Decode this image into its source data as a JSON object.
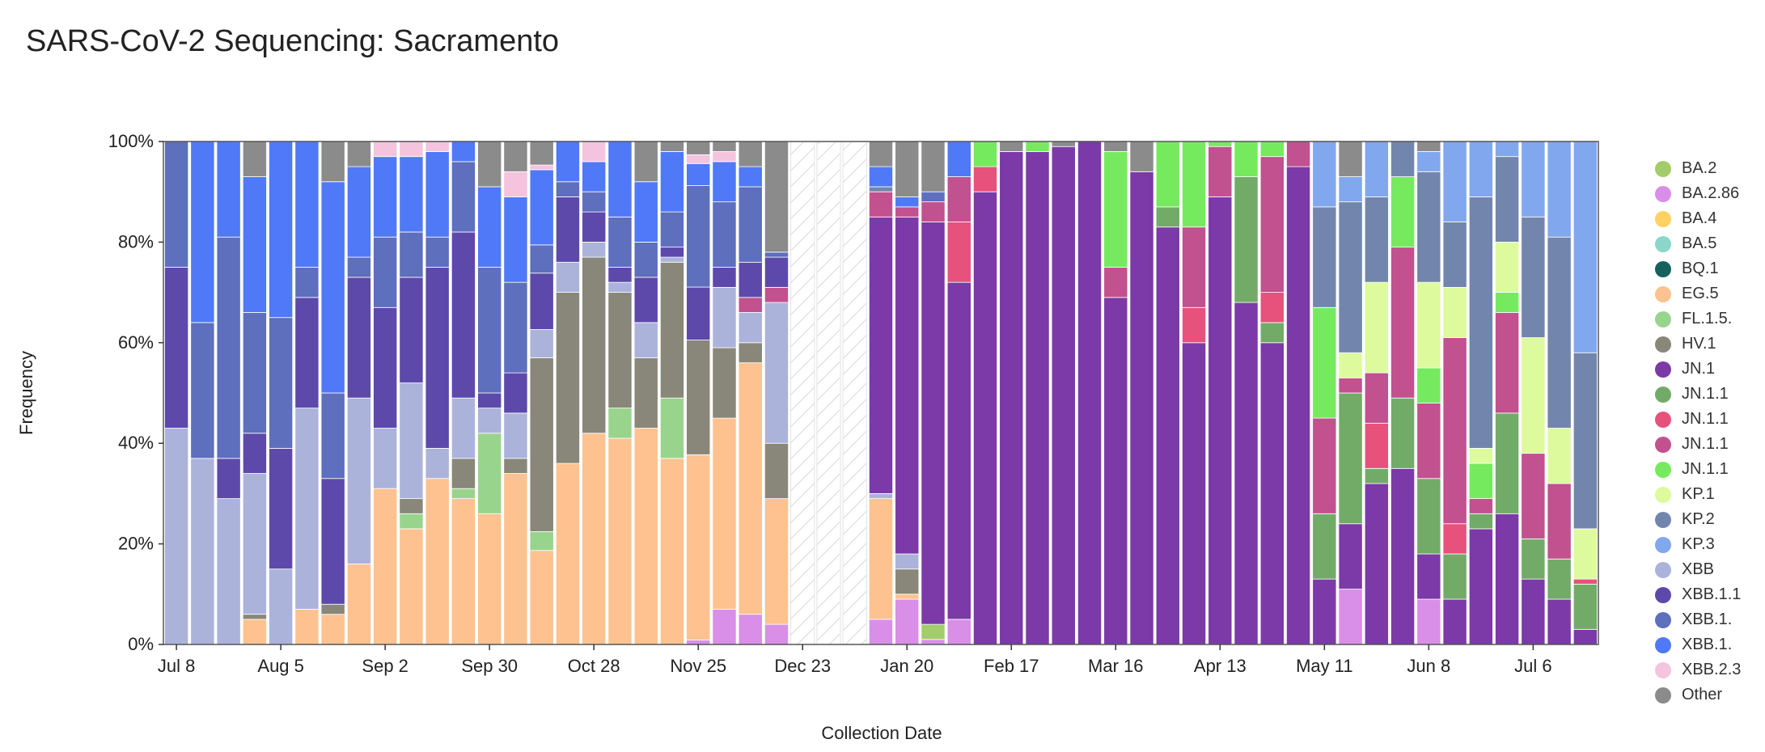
{
  "title": "SARS-CoV-2 Sequencing: Sacramento",
  "chart_data": {
    "type": "bar",
    "stacked": true,
    "normalized": true,
    "xlabel": "Collection Date",
    "ylabel": "Frequency",
    "yticks": [
      "0%",
      "20%",
      "40%",
      "60%",
      "80%",
      "100%"
    ],
    "ylim": [
      0,
      100
    ],
    "xtick_labels": [
      "Jul 8",
      "Aug 5",
      "Sep 2",
      "Sep 30",
      "Oct 28",
      "Nov 25",
      "Dec 23",
      "Jan 20",
      "Feb 17",
      "Mar 16",
      "Apr 13",
      "May 11",
      "Jun 8",
      "Jul 6"
    ],
    "xtick_positions": [
      0,
      4,
      8,
      12,
      16,
      20,
      24,
      28,
      32,
      36,
      40,
      44,
      48,
      52
    ],
    "no_data_weeks": [
      24,
      25,
      26
    ],
    "legend_position": "right",
    "legend": [
      {
        "key": "BA2",
        "label": "BA.2",
        "color": "#a3cc6a"
      },
      {
        "key": "BA286",
        "label": "BA.2.86",
        "color": "#d98ee8"
      },
      {
        "key": "BA4",
        "label": "BA.4",
        "color": "#fdd263"
      },
      {
        "key": "BA5",
        "label": "BA.5",
        "color": "#8ad6c8"
      },
      {
        "key": "BQ1",
        "label": "BQ.1",
        "color": "#14625e"
      },
      {
        "key": "EG5",
        "label": "EG.5",
        "color": "#fdc28f"
      },
      {
        "key": "FL15",
        "label": "FL.1.5.",
        "color": "#99d48d"
      },
      {
        "key": "HV1",
        "label": "HV.1",
        "color": "#888779"
      },
      {
        "key": "JN1",
        "label": "JN.1",
        "color": "#7b3aa7"
      },
      {
        "key": "JN1a",
        "label": "JN.1.1",
        "color": "#72ab68"
      },
      {
        "key": "JN1b",
        "label": "JN.1.1",
        "color": "#e6527c"
      },
      {
        "key": "JN1c",
        "label": "JN.1.1",
        "color": "#c2518f"
      },
      {
        "key": "JN1d",
        "label": "JN.1.1",
        "color": "#76ea5e"
      },
      {
        "key": "KP1",
        "label": "KP.1",
        "color": "#ddfa9d"
      },
      {
        "key": "KP2",
        "label": "KP.2",
        "color": "#7286ad"
      },
      {
        "key": "KP3",
        "label": "KP.3",
        "color": "#81a7ef"
      },
      {
        "key": "XBB",
        "label": "XBB",
        "color": "#abb3db"
      },
      {
        "key": "XBB11",
        "label": "XBB.1.1",
        "color": "#5d49aa"
      },
      {
        "key": "XBB1b",
        "label": "XBB.1.",
        "color": "#5d6fbd"
      },
      {
        "key": "XBB1c",
        "label": "XBB.1.",
        "color": "#4f79f6"
      },
      {
        "key": "XBB23",
        "label": "XBB.2.3",
        "color": "#f4c3de"
      },
      {
        "key": "Other",
        "label": "Other",
        "color": "#8b8b8b"
      }
    ],
    "stack_order": [
      "BA286",
      "BA2",
      "EG5",
      "FL15",
      "HV1",
      "XBB",
      "JN1",
      "JN1a",
      "JN1b",
      "JN1c",
      "JN1d",
      "KP1",
      "KP2",
      "KP3",
      "XBB11",
      "XBB1b",
      "XBB1c",
      "XBB23",
      "Other"
    ],
    "weeks": [
      {
        "XBB": 43,
        "XBB11": 32,
        "XBB1b": 25
      },
      {
        "XBB": 37,
        "XBB1b": 27,
        "XBB1c": 36
      },
      {
        "XBB": 29,
        "XBB11": 8,
        "XBB1b": 44,
        "XBB1c": 19
      },
      {
        "EG5": 5,
        "HV1": 1,
        "XBB": 28,
        "XBB11": 8,
        "XBB1b": 24,
        "XBB1c": 27,
        "Other": 7
      },
      {
        "XBB": 15,
        "XBB11": 24,
        "XBB1b": 26,
        "XBB1c": 35
      },
      {
        "EG5": 7,
        "XBB": 40,
        "XBB11": 22,
        "XBB1b": 6,
        "XBB1c": 25
      },
      {
        "EG5": 6,
        "HV1": 2,
        "XBB11": 25,
        "XBB1b": 17,
        "XBB1c": 42,
        "Other": 8
      },
      {
        "EG5": 16,
        "XBB": 33,
        "XBB11": 24,
        "XBB1b": 4,
        "XBB1c": 18,
        "Other": 5
      },
      {
        "EG5": 31,
        "XBB": 12,
        "XBB11": 24,
        "XBB1b": 14,
        "XBB1c": 16,
        "XBB23": 3
      },
      {
        "EG5": 23,
        "FL15": 3,
        "HV1": 3,
        "XBB": 23,
        "XBB11": 21,
        "XBB1b": 9,
        "XBB1c": 15,
        "XBB23": 3
      },
      {
        "EG5": 33,
        "XBB": 6,
        "XBB11": 36,
        "XBB1b": 6,
        "XBB1c": 17,
        "XBB23": 2
      },
      {
        "EG5": 29,
        "FL15": 2,
        "HV1": 6,
        "XBB": 12,
        "XBB11": 33,
        "XBB1b": 14,
        "XBB1c": 4
      },
      {
        "EG5": 26,
        "FL15": 16,
        "XBB": 5,
        "XBB11": 3,
        "XBB1b": 25,
        "XBB1c": 16,
        "Other": 9
      },
      {
        "EG5": 34,
        "HV1": 3,
        "XBB": 9,
        "XBB11": 8,
        "XBB1b": 18,
        "XBB1c": 17,
        "XBB23": 5,
        "Other": 6
      },
      {
        "EG5": 20,
        "FL15": 4,
        "HV1": 37,
        "XBB": 6,
        "XBB11": 12,
        "XBB1b": 6,
        "XBB1c": 16,
        "XBB23": 1,
        "Other": 5
      },
      {
        "EG5": 36,
        "HV1": 34,
        "XBB": 6,
        "XBB11": 13,
        "XBB1b": 3,
        "XBB1c": 8
      },
      {
        "EG5": 42,
        "HV1": 35,
        "XBB": 3,
        "XBB11": 6,
        "XBB1b": 4,
        "XBB1c": 6,
        "XBB23": 4
      },
      {
        "EG5": 41,
        "FL15": 6,
        "HV1": 23,
        "XBB": 2,
        "XBB11": 3,
        "XBB1b": 10,
        "XBB1c": 15
      },
      {
        "EG5": 43,
        "HV1": 14,
        "XBB": 7,
        "XBB11": 9,
        "XBB1b": 7,
        "XBB1c": 12,
        "Other": 8
      },
      {
        "EG5": 37,
        "FL15": 12,
        "HV1": 27,
        "XBB": 1,
        "XBB11": 2,
        "XBB1b": 7,
        "XBB1c": 12,
        "Other": 2
      },
      {
        "BA286": 1,
        "EG5": 42,
        "HV1": 26,
        "XBB11": 12,
        "XBB1b": 23,
        "XBB1c": 5,
        "XBB23": 2,
        "Other": 3
      },
      {
        "BA286": 7,
        "EG5": 38,
        "HV1": 14,
        "XBB11": 4,
        "XBB": 12,
        "XBB1b": 13,
        "XBB1c": 8,
        "XBB23": 2,
        "Other": 2
      },
      {
        "BA286": 6,
        "EG5": 50,
        "HV1": 4,
        "XBB11": 7,
        "JN1c": 3,
        "XBB": 6,
        "XBB1b": 15,
        "XBB1c": 4,
        "Other": 5
      },
      {
        "BA286": 4,
        "EG5": 25,
        "HV1": 11,
        "XBB11": 6,
        "JN1c": 3,
        "XBB": 28,
        "XBB1b": 1,
        "XBB1b2": 0,
        "XBB1c": 0,
        "Other": 22
      },
      null,
      null,
      null,
      {
        "BA286": 5,
        "EG5": 24,
        "JN1": 55,
        "JN1c": 5,
        "XBB": 1,
        "KP2": 1,
        "XBB1c": 4,
        "Other": 5
      },
      {
        "BA286": 9,
        "EG5": 1,
        "HV1": 5,
        "JN1": 67,
        "JN1c": 2,
        "XBB": 3,
        "XBB1c": 2,
        "Other": 11
      },
      {
        "BA286": 1,
        "BA2": 3,
        "JN1": 80,
        "JN1c": 4,
        "XBB1b": 2,
        "Other": 10
      },
      {
        "BA286": 5,
        "JN1": 67,
        "JN1b": 12,
        "JN1c": 9,
        "XBB1c": 7
      },
      {
        "JN1": 90,
        "JN1b": 5,
        "JN1d": 5
      },
      {
        "JN1": 98,
        "Other": 2
      },
      {
        "JN1": 98,
        "JN1d": 2
      },
      {
        "JN1": 99,
        "Other": 1
      },
      {},
      {
        "JN1": 69,
        "JN1c": 6,
        "JN1d": 23,
        "Other": 2
      },
      {
        "JN1": 94,
        "Other": 6
      },
      {
        "JN1": 83,
        "JN1a": 4,
        "JN1d": 13
      },
      {
        "JN1": 60,
        "JN1b": 7,
        "JN1c": 16,
        "JN1d": 17
      },
      {
        "JN1": 89,
        "JN1c": 10,
        "JN1d": 1
      },
      {
        "JN1": 68,
        "JN1a": 25,
        "JN1d": 7
      },
      {
        "JN1": 60,
        "JN1a": 4,
        "JN1b": 6,
        "JN1c": 27,
        "JN1d": 3
      },
      {
        "JN1": 95,
        "JN1c": 5
      },
      {
        "JN1": 13,
        "JN1a": 13,
        "JN1c": 19,
        "JN1d": 22,
        "KP2": 20,
        "KP3": 13
      },
      {
        "BA286": 11,
        "JN1": 13,
        "JN1a": 26,
        "JN1c": 3,
        "KP1": 5,
        "KP2": 30,
        "KP3": 5,
        "Other": 7
      },
      {
        "JN1": 32,
        "JN1a": 3,
        "JN1b": 9,
        "JN1c": 10,
        "KP1": 18,
        "KP2": 17,
        "KP3": 11
      },
      {
        "JN1": 35,
        "JN1a": 14,
        "JN1c": 30,
        "JN1d": 14,
        "KP2": 7
      },
      {
        "BA286": 9,
        "JN1": 9,
        "JN1a": 15,
        "JN1c": 15,
        "JN1d": 7,
        "KP1": 17,
        "KP2": 22,
        "KP3": 4,
        "Other": 2
      },
      {
        "JN1": 9,
        "JN1a": 9,
        "JN1b": 6,
        "JN1c": 37,
        "KP1": 10,
        "KP2": 13,
        "KP3": 16
      },
      {
        "JN1": 23,
        "JN1a": 3,
        "JN1c": 3,
        "JN1d": 7,
        "KP1": 3,
        "KP2": 50,
        "KP3": 11
      },
      {
        "JN1": 26,
        "JN1a": 20,
        "JN1c": 20,
        "JN1d": 4,
        "KP1": 10,
        "KP2": 17,
        "KP3": 3
      },
      {
        "JN1": 13,
        "JN1a": 8,
        "JN1c": 17,
        "JN1d": 0,
        "KP1": 23,
        "KP2": 24,
        "KP3": 15
      },
      {
        "JN1": 9,
        "JN1a": 8,
        "JN1c": 15,
        "KP1": 11,
        "KP2": 38,
        "KP3": 19
      },
      {
        "JN1": 3,
        "JN1a": 9,
        "JN1b": 1,
        "KP1": 10,
        "KP2": 35,
        "KP3": 42
      }
    ]
  }
}
